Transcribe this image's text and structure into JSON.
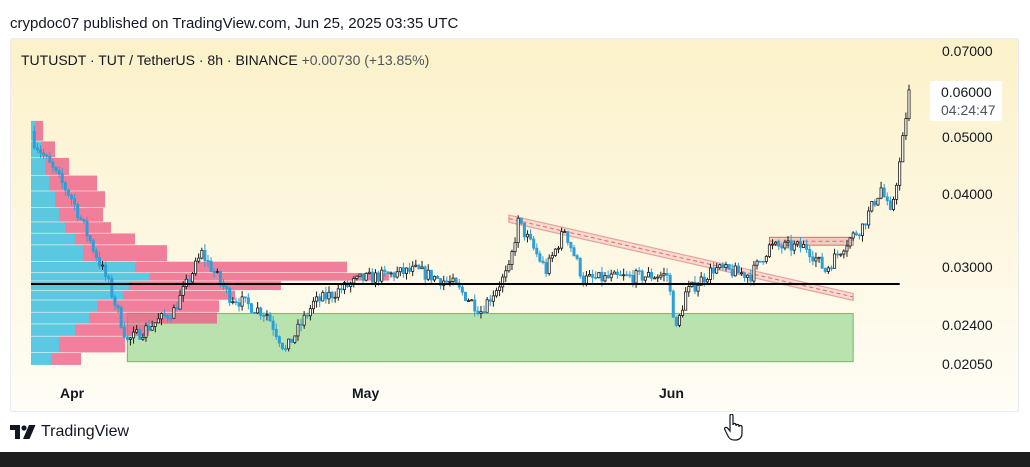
{
  "publisher": "crypdoc07 published on TradingView.com, Jun 25, 2025 03:35 UTC",
  "brand": "TradingView",
  "chart": {
    "symbol": "TUTUSDT · TUT / TetherUS · 8h · BINANCE",
    "change": "+0.00730 (+13.85%)",
    "last_price": "0.06000",
    "countdown": "04:24:47",
    "price_labels": [
      "0.07000",
      "0.05000",
      "0.04000",
      "0.03000",
      "0.02400",
      "0.02050"
    ],
    "time_labels": [
      "Apr",
      "May",
      "Jun"
    ]
  },
  "colors": {
    "background_top": "#fbf1c9",
    "background_bottom": "#fffdf6",
    "candle_up": "#1c1c1c",
    "candle_down": "#2c9fd8",
    "support_zone": "#a3d99a",
    "trendline": "#e8a2a2",
    "volume_profile_down": "#3ec0e0",
    "volume_profile_up": "#ee6088",
    "horizontal_line": "#000000"
  },
  "chart_data": {
    "type": "candlestick",
    "interval": "8h",
    "y_scale": "log",
    "x_range": [
      "2025-03-22",
      "2025-06-25"
    ],
    "y_range": [
      0.0195,
      0.0716
    ],
    "approx_close_path": [
      {
        "date": "2025-03-23",
        "close": 0.048
      },
      {
        "date": "2025-03-27",
        "close": 0.0385
      },
      {
        "date": "2025-03-31",
        "close": 0.0275
      },
      {
        "date": "2025-04-02",
        "close": 0.022
      },
      {
        "date": "2025-04-07",
        "close": 0.0248
      },
      {
        "date": "2025-04-10",
        "close": 0.031
      },
      {
        "date": "2025-04-13",
        "close": 0.0262
      },
      {
        "date": "2025-04-17",
        "close": 0.0245
      },
      {
        "date": "2025-04-19",
        "close": 0.0212
      },
      {
        "date": "2025-04-22",
        "close": 0.0255
      },
      {
        "date": "2025-04-27",
        "close": 0.028
      },
      {
        "date": "2025-05-03",
        "close": 0.029
      },
      {
        "date": "2025-05-07",
        "close": 0.0275
      },
      {
        "date": "2025-05-10",
        "close": 0.0248
      },
      {
        "date": "2025-05-13",
        "close": 0.029
      },
      {
        "date": "2025-05-14",
        "close": 0.035
      },
      {
        "date": "2025-05-17",
        "close": 0.029
      },
      {
        "date": "2025-05-19",
        "close": 0.034
      },
      {
        "date": "2025-05-21",
        "close": 0.028
      },
      {
        "date": "2025-05-25",
        "close": 0.0282
      },
      {
        "date": "2025-05-30",
        "close": 0.0285
      },
      {
        "date": "2025-05-31",
        "close": 0.023
      },
      {
        "date": "2025-06-01",
        "close": 0.0265
      },
      {
        "date": "2025-06-04",
        "close": 0.0292
      },
      {
        "date": "2025-06-08",
        "close": 0.0285
      },
      {
        "date": "2025-06-10",
        "close": 0.0318
      },
      {
        "date": "2025-06-14",
        "close": 0.0318
      },
      {
        "date": "2025-06-16",
        "close": 0.029
      },
      {
        "date": "2025-06-18",
        "close": 0.032
      },
      {
        "date": "2025-06-20",
        "close": 0.0345
      },
      {
        "date": "2025-06-22",
        "close": 0.04
      },
      {
        "date": "2025-06-23",
        "close": 0.036
      },
      {
        "date": "2025-06-24",
        "close": 0.044
      },
      {
        "date": "2025-06-25",
        "close": 0.058
      }
    ],
    "horizontal_line": 0.0275,
    "support_zone": [
      0.0203,
      0.0245
    ],
    "support_zone_dates": [
      "2025-04-02",
      "2025-06-19"
    ],
    "descending_channel": {
      "upper": [
        {
          "date": "2025-05-13",
          "price": 0.036
        },
        {
          "date": "2025-06-19",
          "price": 0.0265
        }
      ],
      "lower": [
        {
          "date": "2025-05-13",
          "price": 0.035
        },
        {
          "date": "2025-06-19",
          "price": 0.0258
        }
      ]
    },
    "resistance_box": {
      "dates": [
        "2025-06-10",
        "2025-06-19"
      ],
      "prices": [
        0.032,
        0.033
      ]
    },
    "volume_profile": {
      "bins": [
        [
          0.052,
          0.048,
          4,
          8
        ],
        [
          0.048,
          0.045,
          10,
          14
        ],
        [
          0.045,
          0.042,
          14,
          24
        ],
        [
          0.042,
          0.0395,
          18,
          48
        ],
        [
          0.0395,
          0.037,
          24,
          50
        ],
        [
          0.037,
          0.035,
          28,
          44
        ],
        [
          0.035,
          0.0335,
          34,
          46
        ],
        [
          0.0335,
          0.032,
          44,
          60
        ],
        [
          0.032,
          0.03,
          52,
          84
        ],
        [
          0.03,
          0.0287,
          104,
          212
        ],
        [
          0.0287,
          0.0278,
          118,
          240
        ],
        [
          0.0278,
          0.0268,
          98,
          152
        ],
        [
          0.0268,
          0.0258,
          92,
          112
        ],
        [
          0.0258,
          0.0246,
          66,
          122
        ],
        [
          0.0246,
          0.0235,
          58,
          128
        ],
        [
          0.0235,
          0.0224,
          44,
          74
        ],
        [
          0.0224,
          0.021,
          28,
          66
        ],
        [
          0.021,
          0.02,
          20,
          30
        ]
      ]
    }
  }
}
